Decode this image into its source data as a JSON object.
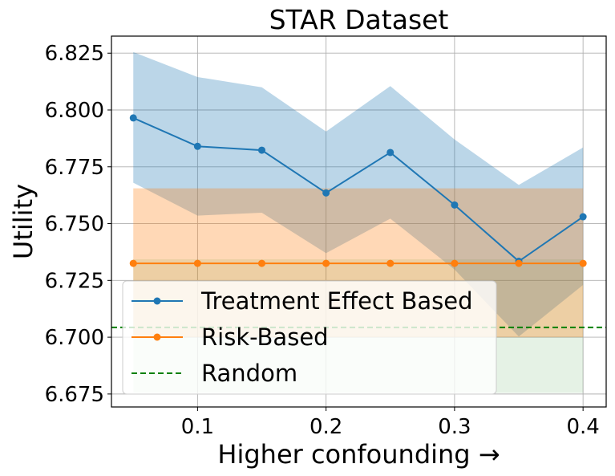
{
  "chart_data": {
    "type": "line",
    "title": "STAR Dataset",
    "xlabel": "Higher confounding →",
    "ylabel": "Utility",
    "xlim": [
      0.033,
      0.418
    ],
    "ylim": [
      6.6693,
      6.8325
    ],
    "grid": true,
    "x_ticks": [
      0.1,
      0.2,
      0.3,
      0.4
    ],
    "x_tick_labels": [
      "0.1",
      "0.2",
      "0.3",
      "0.4"
    ],
    "y_ticks": [
      6.675,
      6.7,
      6.725,
      6.75,
      6.775,
      6.8,
      6.825
    ],
    "y_tick_labels": [
      "6.675",
      "6.700",
      "6.725",
      "6.750",
      "6.775",
      "6.800",
      "6.825"
    ],
    "legend_position": "lower-left",
    "x": [
      0.05,
      0.1,
      0.15,
      0.2,
      0.25,
      0.3,
      0.35,
      0.4
    ],
    "series": [
      {
        "name": "Treatment Effect Based",
        "color": "#1f77b4",
        "marker": "circle",
        "values": [
          6.7965,
          6.784,
          6.7823,
          6.7635,
          6.7813,
          6.7582,
          6.7334,
          6.753
        ],
        "band_upper": [
          6.8255,
          6.8145,
          6.81,
          6.7905,
          6.8105,
          6.787,
          6.767,
          6.7835
        ],
        "band_lower": [
          6.768,
          6.7535,
          6.7548,
          6.737,
          6.7522,
          6.7298,
          6.7003,
          6.723
        ]
      },
      {
        "name": "Risk-Based",
        "color": "#ff7f0e",
        "marker": "circle",
        "values": [
          6.7325,
          6.7325,
          6.7325,
          6.7325,
          6.7325,
          6.7325,
          6.7325,
          6.7325
        ],
        "band_upper": [
          6.7655,
          6.7655,
          6.7655,
          6.7655,
          6.7655,
          6.7655,
          6.7655,
          6.7655
        ],
        "band_lower": [
          6.7,
          6.7,
          6.7,
          6.7,
          6.7,
          6.7,
          6.7,
          6.7
        ]
      },
      {
        "name": "Random",
        "color": "#008000",
        "style": "dashed",
        "value": 6.7043,
        "band_upper": 6.7343,
        "band_lower": 6.6755
      }
    ]
  }
}
